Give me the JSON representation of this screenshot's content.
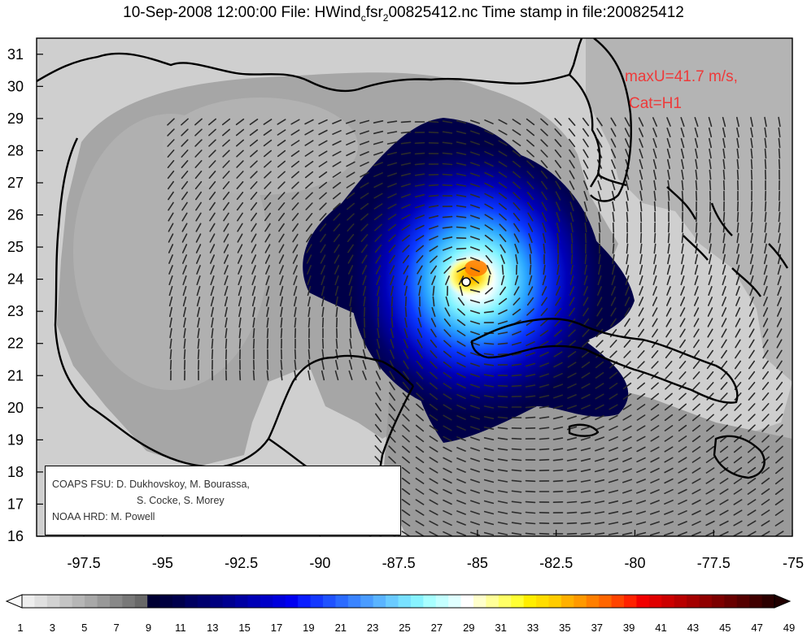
{
  "title": {
    "prefix": "10-Sep-2008 12:00:00 File: HWind",
    "sub": "c",
    "mid": "fsr",
    "sub2": "2",
    "suffix": "00825412.nc Time stamp in file:200825412"
  },
  "annotation": {
    "line1": "maxU=41.7 m/s,",
    "line2": "Cat=H1"
  },
  "credits": {
    "line1": "COAPS FSU: D. Dukhovskoy, M. Bourassa,",
    "line2": "S. Cocke, S. Morey",
    "line3": "NOAA HRD:  M. Powell"
  },
  "axes": {
    "lon_ticks": [
      "-97.5",
      "-95",
      "-92.5",
      "-90",
      "-87.5",
      "-85",
      "-82.5",
      "-80",
      "-77.5",
      "-75"
    ],
    "lat_ticks": [
      "16",
      "17",
      "18",
      "19",
      "20",
      "21",
      "22",
      "23",
      "24",
      "25",
      "26",
      "27",
      "28",
      "29",
      "30",
      "31"
    ],
    "lon_range": [
      -99.0,
      -75.0
    ],
    "lat_range": [
      16.0,
      31.5
    ]
  },
  "storm": {
    "center_lon": -85.1,
    "center_lat": 23.9,
    "max_wind": 41.7
  },
  "colorbar": {
    "labels": [
      "1",
      "3",
      "5",
      "7",
      "9",
      "11",
      "13",
      "15",
      "17",
      "19",
      "21",
      "23",
      "25",
      "27",
      "29",
      "31",
      "33",
      "35",
      "37",
      "39",
      "41",
      "43",
      "45",
      "47",
      "49"
    ],
    "colors": [
      "#eeeeee",
      "#e0e0e0",
      "#d2d2d2",
      "#c4c4c4",
      "#b6b6b6",
      "#a8a8a8",
      "#989898",
      "#888888",
      "#787878",
      "#686868",
      "#000033",
      "#00003f",
      "#00004c",
      "#000060",
      "#00006e",
      "#00007f",
      "#000090",
      "#0000a3",
      "#0000b6",
      "#0000c8",
      "#0000dc",
      "#0000f0",
      "#0a1dff",
      "#1438ff",
      "#1f52ff",
      "#2b6bff",
      "#3a84ff",
      "#4a9cff",
      "#5ab4ff",
      "#6acbff",
      "#79e1ff",
      "#88f3ff",
      "#a8ffff",
      "#c4ffff",
      "#e0ffff",
      "#ffffff",
      "#ffffcc",
      "#ffff99",
      "#ffff66",
      "#ffff33",
      "#ffee00",
      "#ffdd00",
      "#ffcc00",
      "#ffb000",
      "#ff9900",
      "#ff7f00",
      "#ff6600",
      "#ff4400",
      "#ff2200",
      "#f20000",
      "#e00000",
      "#cc0000",
      "#b80000",
      "#a40000",
      "#900000",
      "#7c0000",
      "#680000",
      "#540000",
      "#400000",
      "#2c0000"
    ]
  },
  "colors": {
    "annotation": "#ee3a3a",
    "sea": "#a8a8a8",
    "land": "#cfcfcf"
  }
}
